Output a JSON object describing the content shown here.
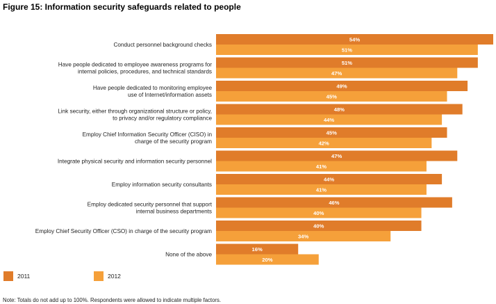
{
  "chart_data": {
    "type": "bar",
    "orientation": "horizontal",
    "title": "Figure 15: Information security safeguards related to people",
    "categories": [
      [
        "Conduct personnel background checks"
      ],
      [
        "Have people dedicated to employee awareness programs for",
        "internal policies, procedures, and technical standards"
      ],
      [
        "Have people dedicated to monitoring employee",
        "use of Internet/information assets"
      ],
      [
        "Link security, either through organizational structure or policy,",
        "to privacy and/or regulatory compliance"
      ],
      [
        "Employ Chief Information Security Officer (CISO) in",
        "charge of the security program"
      ],
      [
        "Integrate physical security and information security personnel"
      ],
      [
        "Employ information security consultants"
      ],
      [
        "Employ dedicated security personnel that support",
        "internal business departments"
      ],
      [
        "Employ Chief Security Officer (CSO) in charge of the security program"
      ],
      [
        "None of the above"
      ]
    ],
    "series": [
      {
        "name": "2011",
        "color": "#E07C2A",
        "values": [
          54,
          51,
          49,
          48,
          45,
          47,
          44,
          46,
          40,
          16
        ],
        "labels": [
          "54%",
          "51%",
          "49%",
          "48%",
          "45%",
          "47%",
          "44%",
          "46%",
          "40%",
          "16%"
        ]
      },
      {
        "name": "2012",
        "color": "#F5A03A",
        "values": [
          51,
          47,
          45,
          44,
          42,
          41,
          41,
          40,
          34,
          20
        ],
        "labels": [
          "51%",
          "47%",
          "45%",
          "44%",
          "42%",
          "41%",
          "41%",
          "40%",
          "34%",
          "20%"
        ]
      }
    ],
    "xlim": [
      0,
      54
    ],
    "grid": false,
    "legend_position": "bottom-left"
  },
  "legend": {
    "item_2011": "2011",
    "item_2012": "2012"
  },
  "note": "Note: Totals do not add up to 100%. Respondents were allowed to indicate multiple factors."
}
